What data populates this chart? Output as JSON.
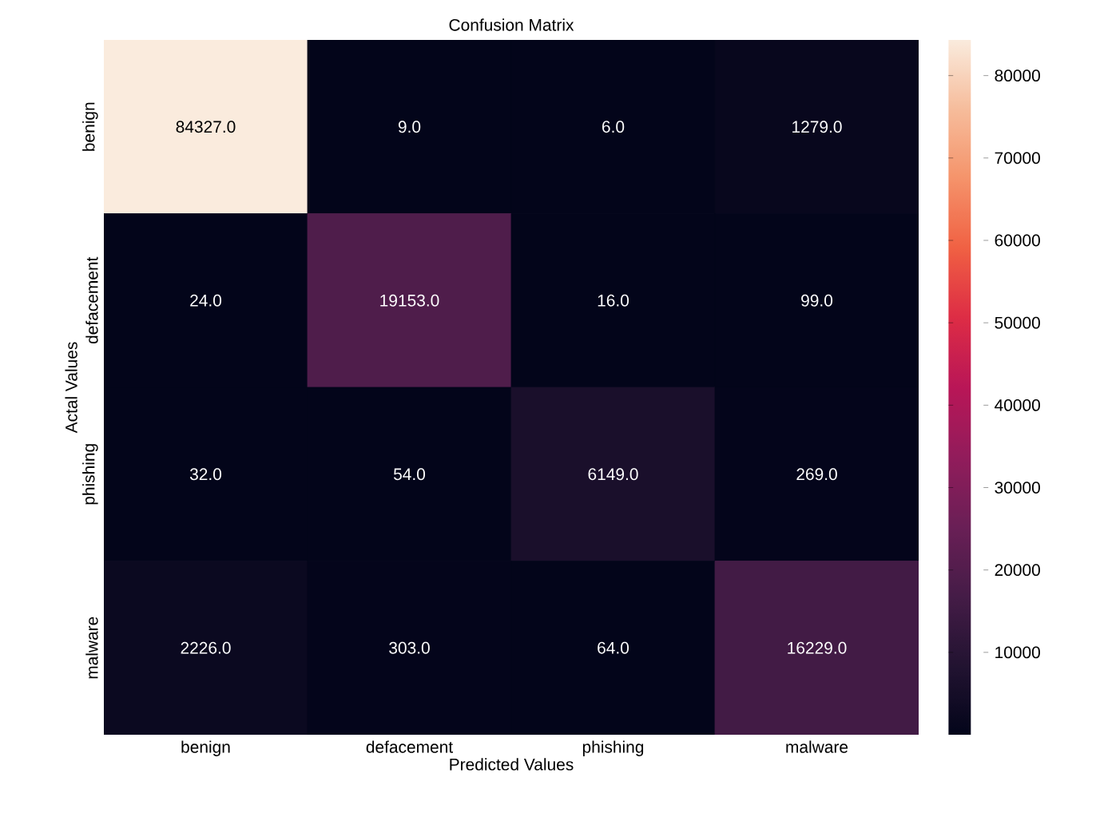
{
  "chart_data": {
    "type": "heatmap",
    "title": "Confusion Matrix",
    "xlabel": "Predicted Values",
    "ylabel": "Actal Values",
    "categories": [
      "benign",
      "defacement",
      "phishing",
      "malware"
    ],
    "y_categories": [
      "benign",
      "defacement",
      "phishing",
      "malware"
    ],
    "cells": [
      [
        84327,
        9,
        6,
        1279
      ],
      [
        24,
        19153,
        16,
        99
      ],
      [
        32,
        54,
        6149,
        269
      ],
      [
        2226,
        303,
        64,
        16229
      ]
    ],
    "cell_labels": [
      [
        "84327.0",
        "9.0",
        "6.0",
        "1279.0"
      ],
      [
        "24.0",
        "19153.0",
        "16.0",
        "99.0"
      ],
      [
        "32.0",
        "54.0",
        "6149.0",
        "269.0"
      ],
      [
        "2226.0",
        "303.0",
        "64.0",
        "16229.0"
      ]
    ],
    "clim": [
      6,
      84327
    ],
    "cticks": [
      10000,
      20000,
      30000,
      40000,
      50000,
      60000,
      70000,
      80000
    ]
  }
}
